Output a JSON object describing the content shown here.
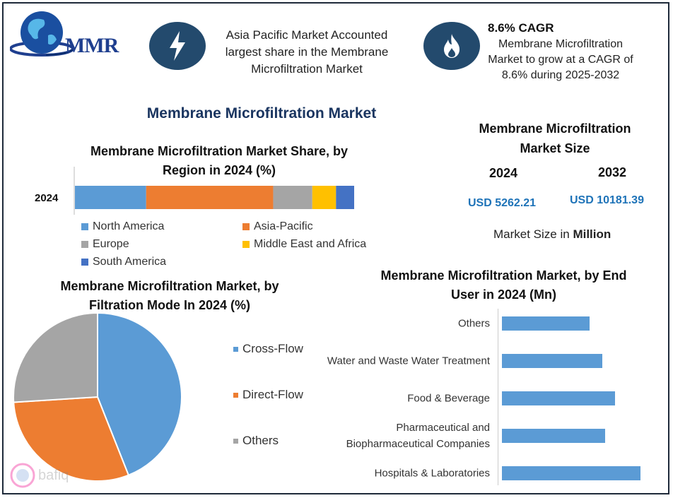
{
  "logo": {
    "text": "MMR"
  },
  "header": {
    "left_text": "Asia Pacific Market Accounted largest share in the Membrane Microfiltration Market",
    "right_title": "8.6% CAGR",
    "right_text": "Membrane Microfiltration Market to grow at a CAGR of 8.6% during 2025-2032"
  },
  "main_title": "Membrane Microfiltration Market",
  "market_size": {
    "title": "Membrane Microfiltration Market Size",
    "year_a": "2024",
    "year_b": "2032",
    "value_a": "USD 5262.21",
    "value_b": "USD 10181.39",
    "unit_prefix": "Market Size in ",
    "unit_bold": "Million"
  },
  "watermark": "bafiq",
  "colors": {
    "navy": "#234a6d",
    "title": "#1a3560",
    "usd": "#1e73b8"
  },
  "chart_data": [
    {
      "type": "bar",
      "orientation": "horizontal-stacked",
      "title": "Membrane Microfiltration Market Share, by Region in 2024 (%)",
      "categories": [
        "2024"
      ],
      "series": [
        {
          "name": "North America",
          "values": [
            25.5
          ],
          "color": "#5b9bd5"
        },
        {
          "name": "Asia-Pacific",
          "values": [
            45.5
          ],
          "color": "#ed7d31"
        },
        {
          "name": "Europe",
          "values": [
            14.0
          ],
          "color": "#a5a5a5"
        },
        {
          "name": "Middle East and Africa",
          "values": [
            8.5
          ],
          "color": "#ffc000"
        },
        {
          "name": "South America",
          "values": [
            6.5
          ],
          "color": "#4472c4"
        }
      ],
      "legend": "bottom"
    },
    {
      "type": "pie",
      "title": "Membrane Microfiltration Market, by Filtration Mode In 2024 (%)",
      "labels": [
        "Cross-Flow",
        "Direct-Flow",
        "Others"
      ],
      "values": [
        44,
        30,
        26
      ],
      "colors": [
        "#5b9bd5",
        "#ed7d31",
        "#a5a5a5"
      ],
      "legend": "right"
    },
    {
      "type": "bar",
      "orientation": "horizontal",
      "title": "Membrane Microfiltration Market, by End User in 2024 (Mn)",
      "categories": [
        "Others",
        "Water and Waste Water Treatment",
        "Food & Beverage",
        "Pharmaceutical and Biopharmaceutical Companies",
        "Hospitals & Laboratories"
      ],
      "values": [
        620,
        710,
        800,
        730,
        980
      ],
      "color": "#5b9bd5"
    }
  ]
}
